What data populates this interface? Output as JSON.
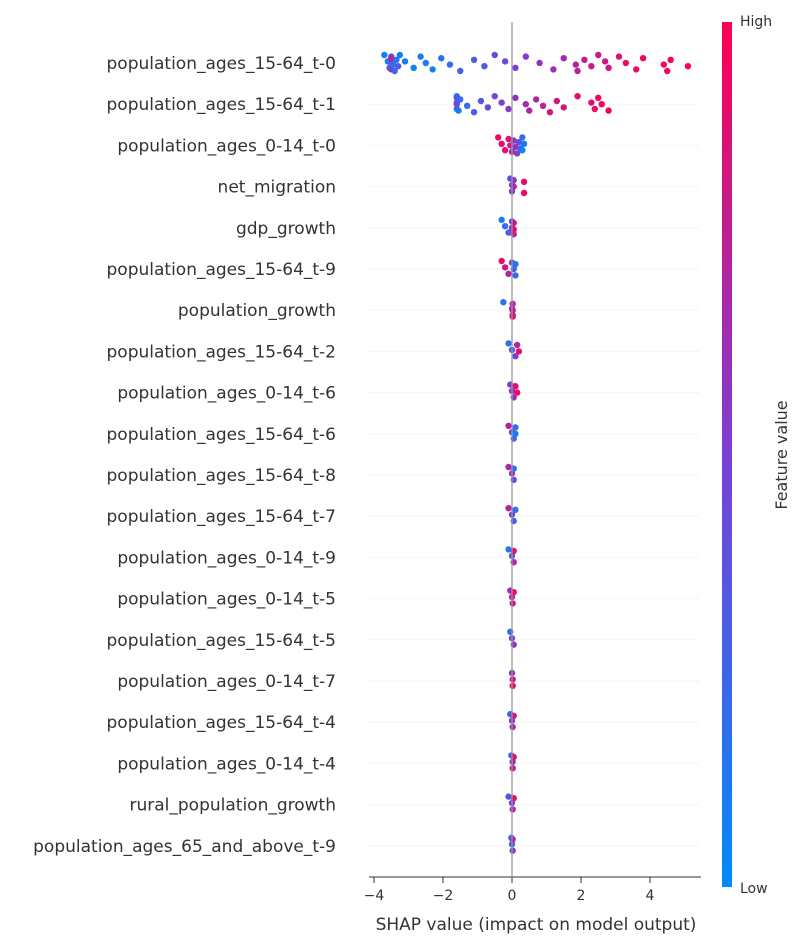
{
  "chart_data": {
    "type": "scatter",
    "subtype": "shap_beeswarm",
    "xlabel": "SHAP value (impact on model output)",
    "xlim": [
      -4.2,
      5.5
    ],
    "xticks": [
      -4,
      -2,
      0,
      2,
      4
    ],
    "features": [
      "population_ages_15-64_t-0",
      "population_ages_15-64_t-1",
      "population_ages_0-14_t-0",
      "net_migration",
      "gdp_growth",
      "population_ages_15-64_t-9",
      "population_growth",
      "population_ages_15-64_t-2",
      "population_ages_0-14_t-6",
      "population_ages_15-64_t-6",
      "population_ages_15-64_t-8",
      "population_ages_15-64_t-7",
      "population_ages_0-14_t-9",
      "population_ages_0-14_t-5",
      "population_ages_15-64_t-5",
      "population_ages_0-14_t-7",
      "population_ages_15-64_t-4",
      "population_ages_0-14_t-4",
      "rural_population_growth",
      "population_ages_65_and_above_t-9"
    ],
    "series": [
      {
        "points": [
          [
            -3.7,
            0.05
          ],
          [
            -3.6,
            0.1
          ],
          [
            -3.55,
            0.2
          ],
          [
            -3.5,
            0.3
          ],
          [
            -3.5,
            0.45
          ],
          [
            -3.5,
            0.6
          ],
          [
            -3.5,
            0.75
          ],
          [
            -3.45,
            0.15
          ],
          [
            -3.4,
            0.25
          ],
          [
            -3.35,
            0.12
          ],
          [
            -3.3,
            0.35
          ],
          [
            -3.25,
            0.1
          ],
          [
            -3.1,
            0.1
          ],
          [
            -2.85,
            0.05
          ],
          [
            -2.65,
            0.1
          ],
          [
            -2.5,
            0.12
          ],
          [
            -2.3,
            0.08
          ],
          [
            -2.05,
            0.15
          ],
          [
            -1.8,
            0.2
          ],
          [
            -1.5,
            0.25
          ],
          [
            -1.1,
            0.3
          ],
          [
            -0.8,
            0.35
          ],
          [
            -0.5,
            0.4
          ],
          [
            -0.2,
            0.45
          ],
          [
            0.1,
            0.5
          ],
          [
            0.4,
            0.55
          ],
          [
            0.8,
            0.6
          ],
          [
            1.2,
            0.62
          ],
          [
            1.5,
            0.65
          ],
          [
            1.85,
            0.7
          ],
          [
            1.9,
            0.72
          ],
          [
            2.1,
            0.75
          ],
          [
            2.3,
            0.78
          ],
          [
            2.5,
            0.8
          ],
          [
            2.7,
            0.82
          ],
          [
            2.8,
            0.84
          ],
          [
            3.1,
            0.86
          ],
          [
            3.3,
            0.9
          ],
          [
            3.6,
            0.92
          ],
          [
            3.8,
            0.93
          ],
          [
            4.4,
            0.94
          ],
          [
            4.5,
            0.95
          ],
          [
            4.6,
            0.96
          ],
          [
            5.1,
            0.98
          ]
        ]
      },
      {
        "points": [
          [
            -1.6,
            0.05
          ],
          [
            -1.6,
            0.15
          ],
          [
            -1.6,
            0.25
          ],
          [
            -1.6,
            0.35
          ],
          [
            -1.6,
            0.45
          ],
          [
            -1.55,
            0.1
          ],
          [
            -1.5,
            0.2
          ],
          [
            -1.3,
            0.2
          ],
          [
            -1.1,
            0.3
          ],
          [
            -0.9,
            0.35
          ],
          [
            -0.7,
            0.4
          ],
          [
            -0.5,
            0.45
          ],
          [
            -0.3,
            0.5
          ],
          [
            -0.1,
            0.55
          ],
          [
            0.1,
            0.6
          ],
          [
            0.4,
            0.65
          ],
          [
            0.5,
            0.7
          ],
          [
            0.7,
            0.72
          ],
          [
            0.9,
            0.75
          ],
          [
            1.1,
            0.8
          ],
          [
            1.3,
            0.82
          ],
          [
            1.5,
            0.85
          ],
          [
            1.9,
            0.88
          ],
          [
            2.3,
            0.9
          ],
          [
            2.4,
            0.92
          ],
          [
            2.5,
            0.95
          ],
          [
            2.6,
            0.96
          ],
          [
            2.8,
            0.98
          ]
        ]
      },
      {
        "points": [
          [
            -0.4,
            0.95
          ],
          [
            -0.3,
            0.92
          ],
          [
            -0.2,
            0.9
          ],
          [
            -0.1,
            0.85
          ],
          [
            -0.05,
            0.8
          ],
          [
            0.0,
            0.7
          ],
          [
            0.05,
            0.6
          ],
          [
            0.1,
            0.55
          ],
          [
            0.15,
            0.5
          ],
          [
            0.2,
            0.4
          ],
          [
            0.25,
            0.3
          ],
          [
            0.3,
            0.2
          ],
          [
            0.35,
            0.1
          ],
          [
            0.3,
            0.05
          ]
        ]
      },
      {
        "points": [
          [
            -0.05,
            0.4
          ],
          [
            0.0,
            0.5
          ],
          [
            0.0,
            0.55
          ],
          [
            0.05,
            0.6
          ],
          [
            0.05,
            0.65
          ],
          [
            0.35,
            0.95
          ],
          [
            0.35,
            0.9
          ]
        ]
      },
      {
        "points": [
          [
            -0.3,
            0.1
          ],
          [
            -0.2,
            0.2
          ],
          [
            -0.1,
            0.3
          ],
          [
            0.0,
            0.4
          ],
          [
            0.0,
            0.5
          ],
          [
            0.05,
            0.7
          ],
          [
            0.05,
            0.8
          ],
          [
            0.05,
            0.9
          ]
        ]
      },
      {
        "points": [
          [
            -0.3,
            0.9
          ],
          [
            -0.2,
            0.8
          ],
          [
            -0.1,
            0.7
          ],
          [
            0.0,
            0.6
          ],
          [
            0.05,
            0.3
          ],
          [
            0.1,
            0.2
          ],
          [
            0.1,
            0.1
          ]
        ]
      },
      {
        "points": [
          [
            -0.25,
            0.2
          ],
          [
            0.0,
            0.5
          ],
          [
            0.02,
            0.6
          ],
          [
            0.02,
            0.7
          ],
          [
            0.02,
            0.8
          ],
          [
            0.02,
            0.9
          ]
        ]
      },
      {
        "points": [
          [
            -0.1,
            0.2
          ],
          [
            0.0,
            0.3
          ],
          [
            0.1,
            0.5
          ],
          [
            0.15,
            0.7
          ],
          [
            0.2,
            0.9
          ]
        ]
      },
      {
        "points": [
          [
            -0.05,
            0.5
          ],
          [
            0.0,
            0.55
          ],
          [
            0.05,
            0.6
          ],
          [
            0.1,
            0.85
          ],
          [
            0.15,
            0.95
          ]
        ]
      },
      {
        "points": [
          [
            -0.1,
            0.7
          ],
          [
            0.0,
            0.5
          ],
          [
            0.05,
            0.3
          ],
          [
            0.1,
            0.2
          ],
          [
            0.1,
            0.1
          ]
        ]
      },
      {
        "points": [
          [
            -0.1,
            0.7
          ],
          [
            0.0,
            0.6
          ],
          [
            0.05,
            0.4
          ],
          [
            0.05,
            0.2
          ]
        ]
      },
      {
        "points": [
          [
            -0.1,
            0.7
          ],
          [
            0.0,
            0.5
          ],
          [
            0.05,
            0.3
          ],
          [
            0.1,
            0.2
          ]
        ]
      },
      {
        "points": [
          [
            -0.1,
            0.1
          ],
          [
            0.0,
            0.3
          ],
          [
            0.05,
            0.7
          ],
          [
            0.05,
            0.9
          ]
        ]
      },
      {
        "points": [
          [
            -0.05,
            0.6
          ],
          [
            0.0,
            0.7
          ],
          [
            0.02,
            0.8
          ],
          [
            0.05,
            0.9
          ]
        ]
      },
      {
        "points": [
          [
            -0.05,
            0.2
          ],
          [
            0.0,
            0.5
          ],
          [
            0.05,
            0.6
          ]
        ]
      },
      {
        "points": [
          [
            0.0,
            0.6
          ],
          [
            0.02,
            0.8
          ],
          [
            0.02,
            0.9
          ]
        ]
      },
      {
        "points": [
          [
            -0.05,
            0.2
          ],
          [
            0.0,
            0.5
          ],
          [
            0.02,
            0.7
          ],
          [
            0.05,
            0.8
          ]
        ]
      },
      {
        "points": [
          [
            -0.02,
            0.2
          ],
          [
            0.02,
            0.6
          ],
          [
            0.02,
            0.8
          ],
          [
            0.05,
            0.9
          ]
        ]
      },
      {
        "points": [
          [
            -0.1,
            0.3
          ],
          [
            0.0,
            0.5
          ],
          [
            0.02,
            0.7
          ],
          [
            0.05,
            0.9
          ]
        ]
      },
      {
        "points": [
          [
            -0.02,
            0.1
          ],
          [
            0.0,
            0.3
          ],
          [
            0.02,
            0.5
          ],
          [
            0.02,
            0.7
          ]
        ]
      }
    ],
    "colorbar": {
      "label": "Feature value",
      "high_label": "High",
      "low_label": "Low",
      "low_color": "#008bfb",
      "high_color": "#ff0052"
    },
    "grid": false
  }
}
